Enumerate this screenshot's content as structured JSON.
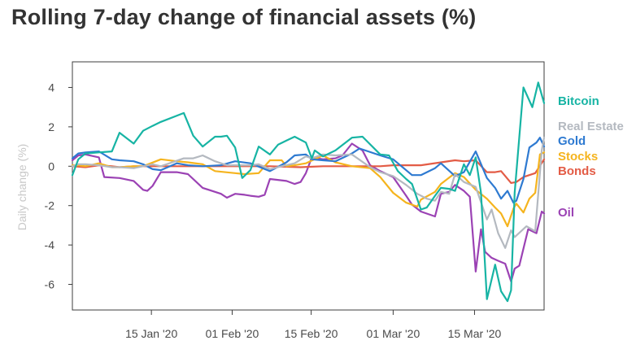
{
  "chart_data": {
    "type": "line",
    "title": "Rolling 7-day change of financial assets (%)",
    "xlabel": "",
    "ylabel": "Daily change (%)",
    "ylim": [
      -7.3,
      5.3
    ],
    "xlim": [
      0,
      80
    ],
    "yticks": [
      4,
      2,
      0,
      -2,
      -4,
      -6
    ],
    "yticklabels": [
      "4",
      "2",
      "0",
      "-2",
      "-4",
      "-6"
    ],
    "xticks": [
      {
        "pos": 13.4,
        "label": "15 Jan '20"
      },
      {
        "pos": 27.1,
        "label": "01 Feb '20"
      },
      {
        "pos": 40.5,
        "label": "15 Feb '20"
      },
      {
        "pos": 54.4,
        "label": "01 Mar '20"
      },
      {
        "pos": 68.2,
        "label": "15 Mar '20"
      }
    ],
    "series": [
      {
        "name": "Bitcoin",
        "color": "#17b4a4",
        "x": [
          0,
          1,
          2.2,
          4.5,
          6.7,
          8,
          10.4,
          12,
          13.6,
          15,
          18.9,
          20.5,
          22.1,
          24.2,
          25.2,
          26.2,
          27.6,
          28.8,
          30.2,
          31.6,
          33.5,
          34.9,
          36.3,
          37.7,
          39.6,
          40.6,
          41.1,
          42.5,
          44.6,
          47.4,
          49.2,
          52.2,
          53.7,
          55.2,
          56.6,
          57.6,
          59.1,
          60.1,
          61.5,
          62.5,
          63.9,
          64.9,
          66.4,
          67.4,
          68.4,
          69.3,
          70.3,
          71.7,
          72.7,
          73.8,
          74.4,
          75,
          76.5,
          78,
          79,
          80
        ],
        "y": [
          -0.45,
          0.35,
          0.65,
          0.7,
          0.75,
          1.7,
          1.15,
          1.8,
          2.05,
          2.25,
          2.7,
          1.55,
          1.0,
          1.5,
          1.5,
          1.55,
          0.95,
          -0.6,
          -0.2,
          1.0,
          0.6,
          1.1,
          1.3,
          1.5,
          1.2,
          0.4,
          0.8,
          0.5,
          0.8,
          1.45,
          1.5,
          0.6,
          0.55,
          -0.25,
          -0.65,
          -0.9,
          -2.2,
          -2.1,
          -1.5,
          -1.1,
          -1.15,
          -1.25,
          0.1,
          -0.45,
          0.45,
          -1.35,
          -6.75,
          -5.0,
          -6.35,
          -6.85,
          -6.3,
          -1.35,
          4.0,
          3.0,
          4.25,
          3.2
        ]
      },
      {
        "name": "Real Estate",
        "color": "#b4b9c0",
        "x": [
          0,
          1,
          2.2,
          4.5,
          6.7,
          8,
          10.4,
          13.6,
          15,
          18.9,
          20.5,
          22.1,
          24.2,
          26.2,
          27.6,
          30.2,
          31.6,
          33.5,
          35.5,
          37.7,
          39.6,
          40.6,
          42.5,
          44.6,
          47.4,
          50.5,
          52.2,
          54.4,
          56.6,
          58.5,
          60.1,
          61.5,
          62.5,
          63.9,
          64.9,
          66.4,
          68.4,
          70.3,
          71.1,
          72.2,
          73.4,
          74.4,
          75,
          77,
          78.5,
          79.6,
          80
        ],
        "y": [
          0.0,
          0.1,
          0.1,
          0.05,
          -0.05,
          -0.05,
          -0.1,
          0.1,
          0.0,
          0.4,
          0.4,
          0.55,
          0.25,
          0.05,
          0.05,
          0.05,
          0.1,
          -0.15,
          0.0,
          0.15,
          0.5,
          0.4,
          0.6,
          0.55,
          0.6,
          -0.05,
          -0.3,
          -0.5,
          -0.95,
          -1.4,
          -1.65,
          -1.75,
          -1.3,
          -1.4,
          -0.4,
          -0.8,
          -1.05,
          -2.7,
          -2.2,
          -3.4,
          -4.15,
          -3.25,
          -3.6,
          -3.05,
          -3.3,
          0.8,
          1.45
        ]
      },
      {
        "name": "Gold",
        "color": "#2e7ad1",
        "x": [
          0,
          1,
          2.2,
          4.5,
          6.7,
          8,
          10.4,
          12,
          13.6,
          15,
          17.7,
          19.6,
          22.1,
          25.2,
          27.6,
          30.2,
          33.5,
          36.3,
          37.7,
          39.6,
          40.6,
          42.5,
          44.6,
          47.4,
          48.7,
          52.2,
          54.4,
          57.6,
          59.1,
          61.5,
          62.5,
          64.9,
          66.4,
          68.4,
          70.3,
          71.7,
          72.7,
          73.8,
          74.8,
          75.3,
          76.5,
          77.5,
          78.7,
          79.3,
          80
        ],
        "y": [
          0.4,
          0.65,
          0.7,
          0.75,
          0.35,
          0.3,
          0.25,
          0.1,
          -0.15,
          -0.2,
          0.15,
          0.05,
          0.0,
          0.05,
          0.25,
          0.15,
          -0.25,
          0.2,
          0.55,
          0.6,
          0.35,
          0.3,
          0.25,
          0.65,
          0.9,
          0.55,
          0.35,
          -0.45,
          -0.45,
          -0.1,
          0.15,
          -0.5,
          -0.3,
          0.75,
          -0.6,
          -1.1,
          -1.65,
          -1.25,
          -1.85,
          -1.75,
          -0.65,
          0.95,
          1.2,
          1.45,
          1.0
        ]
      },
      {
        "name": "Stocks",
        "color": "#f5b41e",
        "x": [
          0,
          1,
          2.2,
          4.5,
          6.7,
          8,
          10.4,
          12,
          15,
          17.7,
          19.6,
          22.1,
          24.2,
          27.6,
          29.2,
          31.6,
          33.5,
          35.5,
          36.3,
          37.7,
          39.6,
          42.5,
          44.6,
          47.4,
          50.5,
          52.2,
          54.4,
          56.6,
          58.5,
          59.1,
          61.5,
          62.5,
          64.9,
          66.4,
          68.4,
          70.3,
          71.7,
          72.7,
          73.8,
          74.8,
          75.3,
          76.5,
          77.5,
          78.5,
          79.3,
          80
        ],
        "y": [
          0.05,
          0.05,
          0.0,
          0.15,
          -0.05,
          -0.05,
          0.0,
          0.0,
          0.35,
          0.25,
          0.2,
          0.1,
          -0.25,
          -0.35,
          -0.4,
          -0.35,
          0.3,
          0.3,
          0.0,
          0.05,
          0.15,
          0.55,
          0.2,
          0.0,
          -0.1,
          -0.55,
          -1.35,
          -1.85,
          -2.05,
          -1.7,
          -1.3,
          -0.9,
          -0.35,
          -0.55,
          -1.2,
          -1.65,
          -2.1,
          -2.4,
          -3.05,
          -2.15,
          -1.9,
          -2.35,
          -1.65,
          -1.35,
          0.6,
          0.7
        ]
      },
      {
        "name": "Bonds",
        "color": "#e35c46",
        "x": [
          0,
          2.2,
          4.5,
          6.7,
          8,
          10.4,
          13.6,
          17.7,
          22.1,
          27.6,
          31.6,
          33.5,
          38.7,
          42.5,
          47.4,
          52.2,
          54.4,
          59.1,
          64.9,
          66.4,
          68.4,
          70.3,
          71.7,
          72.7,
          74.4,
          75.3,
          76.5,
          78.5,
          80
        ],
        "y": [
          0.0,
          -0.05,
          0.05,
          0.0,
          -0.05,
          0.0,
          0.0,
          0.0,
          0.0,
          0.0,
          0.0,
          0.0,
          -0.05,
          0.0,
          0.0,
          0.0,
          0.05,
          0.05,
          0.3,
          0.25,
          0.3,
          -0.3,
          -0.3,
          -0.25,
          -0.85,
          -0.8,
          -0.55,
          -0.35,
          0.35
        ]
      },
      {
        "name": "Oil",
        "color": "#9b42b4",
        "x": [
          0,
          1,
          2.2,
          4.5,
          5.4,
          8,
          10.4,
          12,
          12.7,
          13.6,
          15,
          17.7,
          19.6,
          22.1,
          25.2,
          26.2,
          27.6,
          29.2,
          30.2,
          31.6,
          32.6,
          33.5,
          36.3,
          37.7,
          38.7,
          39.6,
          40.6,
          42.5,
          44.6,
          45.8,
          47.4,
          49.2,
          50.5,
          52.2,
          54.4,
          56.6,
          57.6,
          59.1,
          61.5,
          62.5,
          63.9,
          64.9,
          66.4,
          67.4,
          68.4,
          69.3,
          70,
          71.1,
          72.2,
          73.4,
          74.4,
          75,
          75.8,
          77.3,
          78.7,
          79.6,
          80
        ],
        "y": [
          0.3,
          0.55,
          0.6,
          0.45,
          -0.55,
          -0.6,
          -0.75,
          -1.2,
          -1.25,
          -1.0,
          -0.3,
          -0.3,
          -0.4,
          -1.1,
          -1.4,
          -1.6,
          -1.4,
          -1.45,
          -1.5,
          -1.55,
          -1.45,
          -0.65,
          -0.75,
          -0.9,
          -0.8,
          -0.35,
          0.45,
          0.35,
          0.4,
          0.55,
          1.15,
          0.8,
          0.05,
          -0.25,
          -0.55,
          -1.5,
          -1.95,
          -2.3,
          -2.55,
          -1.4,
          -1.3,
          -0.95,
          -1.25,
          -1.55,
          -5.35,
          -3.2,
          -4.35,
          -4.65,
          -4.8,
          -4.95,
          -5.85,
          -5.2,
          -5.05,
          -3.2,
          -3.4,
          -2.3,
          -2.4
        ]
      }
    ]
  }
}
